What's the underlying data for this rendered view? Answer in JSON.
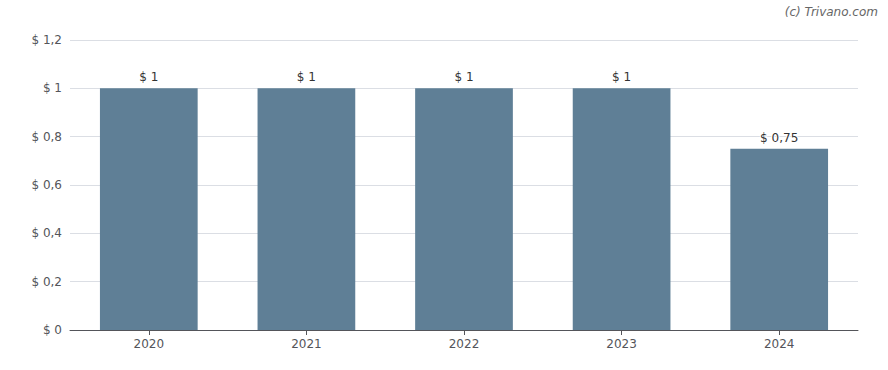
{
  "chart_data": {
    "type": "bar",
    "categories": [
      "2020",
      "2021",
      "2022",
      "2023",
      "2024"
    ],
    "values": [
      1.0,
      1.0,
      1.0,
      1.0,
      0.75
    ],
    "value_labels": [
      "$ 1",
      "$ 1",
      "$ 1",
      "$ 1",
      "$ 0,75"
    ],
    "data_labels": true,
    "color": "#5f7f96",
    "ylim": [
      0,
      1.2
    ],
    "yticks": [
      {
        "value": 0,
        "label": "$ 0"
      },
      {
        "value": 0.2,
        "label": "$ 0,2"
      },
      {
        "value": 0.4,
        "label": "$ 0,4"
      },
      {
        "value": 0.6,
        "label": "$ 0,6"
      },
      {
        "value": 0.8,
        "label": "$ 0,8"
      },
      {
        "value": 1.0,
        "label": "$ 1"
      },
      {
        "value": 1.2,
        "label": "$ 1,2"
      }
    ],
    "grid": true,
    "annotations": [
      "(c) Trivano.com"
    ]
  }
}
